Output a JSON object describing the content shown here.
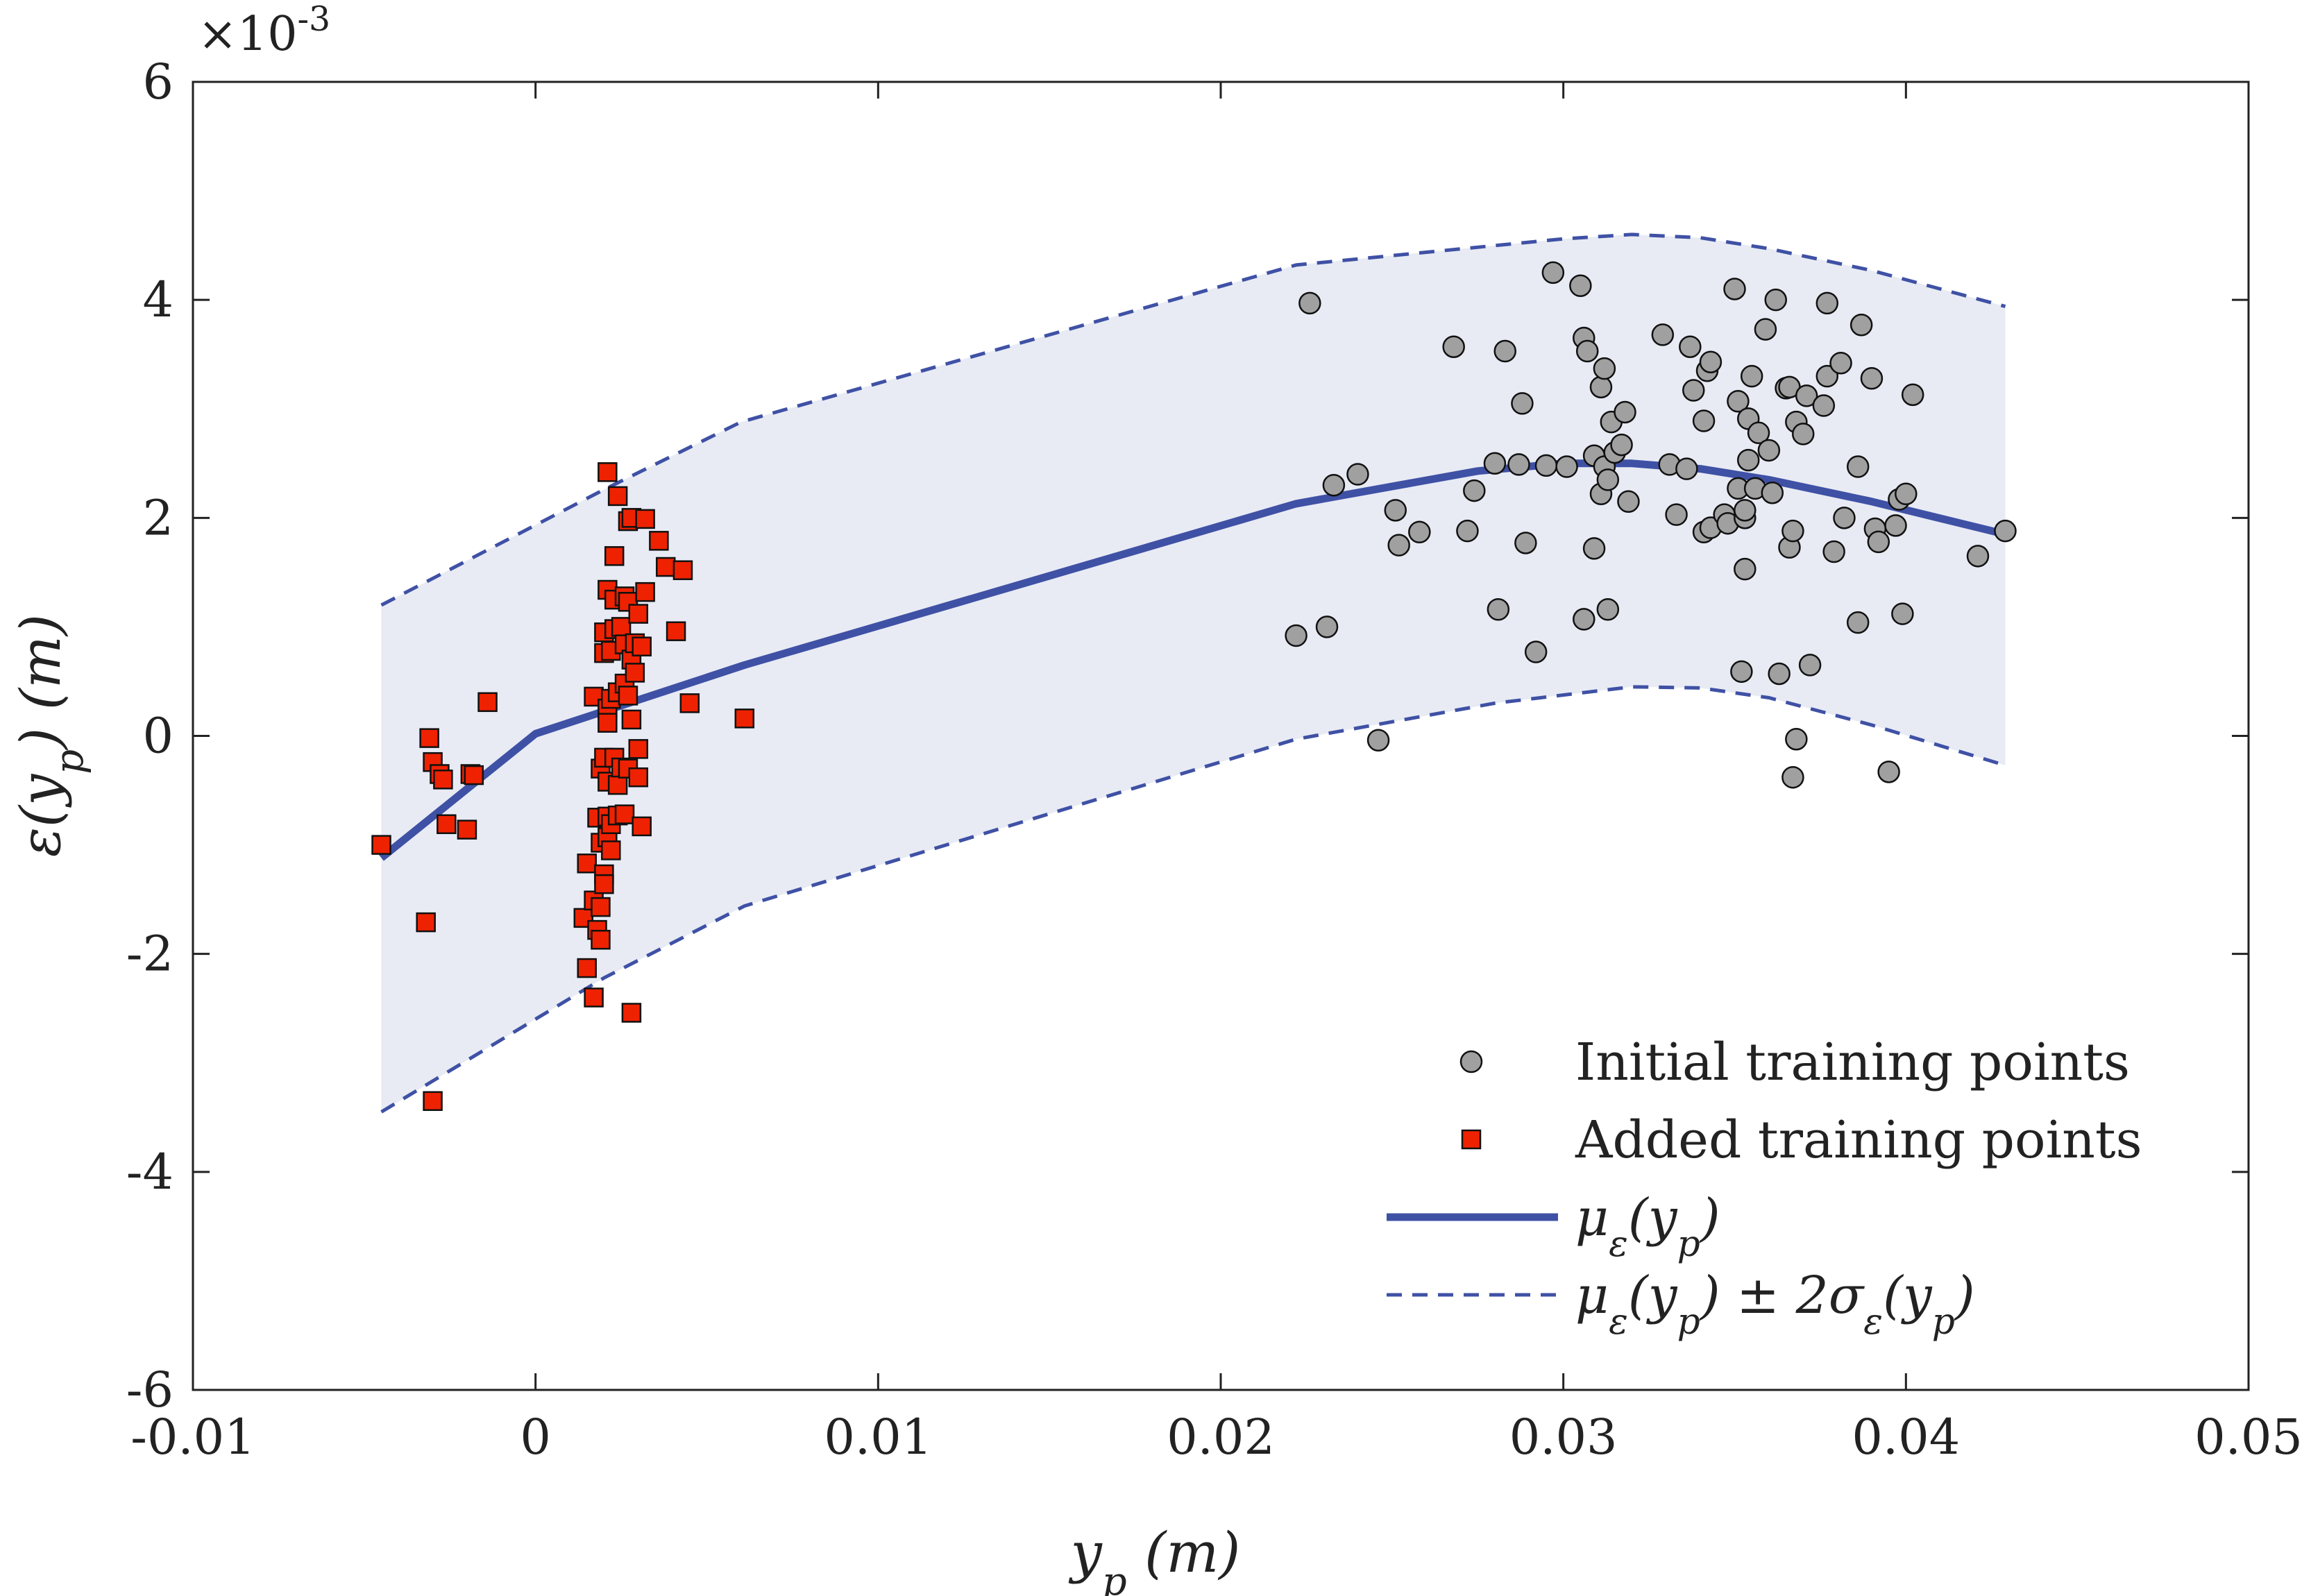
{
  "chart_data": {
    "type": "scatter",
    "title": "",
    "xlabel": "y_p (m)",
    "ylabel": "ε(y_p) (m)",
    "y_exponent_label": "×10^-3",
    "xlim": [
      -0.01,
      0.05
    ],
    "ylim": [
      -6,
      6
    ],
    "x_ticks": [
      -0.01,
      0,
      0.01,
      0.02,
      0.03,
      0.04,
      0.05
    ],
    "x_tick_labels": [
      "-0.01",
      "0",
      "0.01",
      "0.02",
      "0.03",
      "0.04",
      "0.05"
    ],
    "y_ticks": [
      -6,
      -4,
      -2,
      0,
      2,
      4,
      6
    ],
    "y_tick_labels": [
      "-6",
      "-4",
      "-2",
      "0",
      "2",
      "4",
      "6"
    ],
    "grid": false,
    "legend_position": "bottom-right",
    "colors": {
      "initial_points": "#a0a0a0",
      "added_points": "#ee2200",
      "mean_line": "#3f51a5",
      "band_fill": "#e8ebf4",
      "axis": "#222222"
    },
    "series": [
      {
        "name": "Initial training points",
        "kind": "scatter",
        "marker": "circle",
        "points": [
          [
            0.0222,
            0.92
          ],
          [
            0.0226,
            3.97
          ],
          [
            0.0231,
            1.0
          ],
          [
            0.0233,
            2.3
          ],
          [
            0.024,
            2.4
          ],
          [
            0.0246,
            -0.04
          ],
          [
            0.0251,
            2.07
          ],
          [
            0.0252,
            1.75
          ],
          [
            0.0258,
            1.87
          ],
          [
            0.0268,
            3.57
          ],
          [
            0.0272,
            1.88
          ],
          [
            0.0274,
            2.25
          ],
          [
            0.028,
            2.5
          ],
          [
            0.0281,
            1.16
          ],
          [
            0.0283,
            3.53
          ],
          [
            0.0287,
            2.49
          ],
          [
            0.0288,
            3.05
          ],
          [
            0.0289,
            1.77
          ],
          [
            0.0292,
            0.77
          ],
          [
            0.0295,
            2.48
          ],
          [
            0.0297,
            4.25
          ],
          [
            0.0301,
            2.47
          ],
          [
            0.0305,
            4.13
          ],
          [
            0.0306,
            3.65
          ],
          [
            0.0306,
            1.07
          ],
          [
            0.0307,
            3.53
          ],
          [
            0.0309,
            2.57
          ],
          [
            0.0309,
            1.72
          ],
          [
            0.0311,
            2.22
          ],
          [
            0.0311,
            3.2
          ],
          [
            0.0312,
            3.37
          ],
          [
            0.0312,
            2.47
          ],
          [
            0.0313,
            1.16
          ],
          [
            0.0313,
            2.35
          ],
          [
            0.0314,
            2.88
          ],
          [
            0.0315,
            2.6
          ],
          [
            0.0317,
            2.67
          ],
          [
            0.0318,
            2.97
          ],
          [
            0.0319,
            2.15
          ],
          [
            0.0329,
            3.68
          ],
          [
            0.0331,
            2.49
          ],
          [
            0.0333,
            2.03
          ],
          [
            0.0336,
            2.45
          ],
          [
            0.0337,
            3.57
          ],
          [
            0.0338,
            3.17
          ],
          [
            0.0341,
            2.89
          ],
          [
            0.0341,
            1.87
          ],
          [
            0.0342,
            3.35
          ],
          [
            0.0343,
            1.91
          ],
          [
            0.0343,
            3.43
          ],
          [
            0.0347,
            2.03
          ],
          [
            0.0348,
            1.95
          ],
          [
            0.035,
            4.1
          ],
          [
            0.0351,
            3.07
          ],
          [
            0.0351,
            2.27
          ],
          [
            0.0352,
            0.59
          ],
          [
            0.0353,
            2.0
          ],
          [
            0.0353,
            1.53
          ],
          [
            0.0353,
            2.07
          ],
          [
            0.0354,
            2.91
          ],
          [
            0.0354,
            2.53
          ],
          [
            0.0355,
            3.3
          ],
          [
            0.0356,
            2.27
          ],
          [
            0.0357,
            2.78
          ],
          [
            0.0359,
            3.73
          ],
          [
            0.036,
            2.62
          ],
          [
            0.0361,
            2.23
          ],
          [
            0.0362,
            4.0
          ],
          [
            0.0363,
            0.57
          ],
          [
            0.0365,
            3.19
          ],
          [
            0.0366,
            1.73
          ],
          [
            0.0366,
            3.2
          ],
          [
            0.0367,
            -0.38
          ],
          [
            0.0367,
            1.88
          ],
          [
            0.0368,
            -0.03
          ],
          [
            0.0368,
            2.88
          ],
          [
            0.037,
            2.77
          ],
          [
            0.0371,
            3.12
          ],
          [
            0.0372,
            0.65
          ],
          [
            0.0376,
            3.03
          ],
          [
            0.0377,
            3.97
          ],
          [
            0.0377,
            3.3
          ],
          [
            0.0379,
            1.69
          ],
          [
            0.0381,
            3.42
          ],
          [
            0.0382,
            2.0
          ],
          [
            0.0386,
            2.47
          ],
          [
            0.0386,
            1.04
          ],
          [
            0.0387,
            3.77
          ],
          [
            0.039,
            3.28
          ],
          [
            0.0391,
            1.9
          ],
          [
            0.0392,
            1.78
          ],
          [
            0.0395,
            -0.33
          ],
          [
            0.0397,
            1.93
          ],
          [
            0.0398,
            2.17
          ],
          [
            0.0399,
            1.12
          ],
          [
            0.04,
            2.22
          ],
          [
            0.0402,
            3.13
          ],
          [
            0.0421,
            1.65
          ],
          [
            0.0429,
            1.88
          ]
        ]
      },
      {
        "name": "Added training points",
        "kind": "scatter",
        "marker": "square",
        "points": [
          [
            -0.0045,
            -1.0
          ],
          [
            -0.0032,
            -1.71
          ],
          [
            -0.0031,
            -0.02
          ],
          [
            -0.003,
            -3.35
          ],
          [
            -0.003,
            -0.24
          ],
          [
            -0.0028,
            -0.35
          ],
          [
            -0.0027,
            -0.4
          ],
          [
            -0.0026,
            -0.81
          ],
          [
            -0.002,
            -0.86
          ],
          [
            -0.0019,
            -0.35
          ],
          [
            -0.0018,
            -0.36
          ],
          [
            -0.0014,
            0.31
          ],
          [
            0.0014,
            -1.67
          ],
          [
            0.0015,
            -1.17
          ],
          [
            0.0015,
            -2.13
          ],
          [
            0.0017,
            0.36
          ],
          [
            0.0017,
            -1.51
          ],
          [
            0.0017,
            -2.4
          ],
          [
            0.0018,
            -1.78
          ],
          [
            0.0018,
            -0.75
          ],
          [
            0.0019,
            -1.57
          ],
          [
            0.0019,
            -0.98
          ],
          [
            0.0019,
            -0.3
          ],
          [
            0.0019,
            -1.87
          ],
          [
            0.002,
            -0.2
          ],
          [
            0.002,
            -1.27
          ],
          [
            0.002,
            -1.36
          ],
          [
            0.002,
            0.76
          ],
          [
            0.002,
            0.95
          ],
          [
            0.0021,
            -0.74
          ],
          [
            0.0021,
            1.34
          ],
          [
            0.0021,
            0.25
          ],
          [
            0.0021,
            -0.93
          ],
          [
            0.0021,
            0.12
          ],
          [
            0.0021,
            -0.42
          ],
          [
            0.0021,
            2.42
          ],
          [
            0.0022,
            -0.81
          ],
          [
            0.0022,
            -1.05
          ],
          [
            0.0022,
            0.34
          ],
          [
            0.0022,
            0.78
          ],
          [
            0.0023,
            1.65
          ],
          [
            0.0023,
            -0.2
          ],
          [
            0.0023,
            1.25
          ],
          [
            0.0023,
            0.98
          ],
          [
            0.0024,
            -0.45
          ],
          [
            0.0024,
            2.2
          ],
          [
            0.0024,
            0.4
          ],
          [
            0.0024,
            -0.73
          ],
          [
            0.0025,
            1.0
          ],
          [
            0.0025,
            -0.29
          ],
          [
            0.0026,
            1.28
          ],
          [
            0.0026,
            0.84
          ],
          [
            0.0026,
            0.48
          ],
          [
            0.0026,
            -0.72
          ],
          [
            0.0027,
            1.23
          ],
          [
            0.0027,
            0.37
          ],
          [
            0.0027,
            -0.3
          ],
          [
            0.0027,
            1.97
          ],
          [
            0.0028,
            2.0
          ],
          [
            0.0028,
            0.7
          ],
          [
            0.0028,
            -2.54
          ],
          [
            0.0028,
            0.15
          ],
          [
            0.0029,
            0.58
          ],
          [
            0.0029,
            0.85
          ],
          [
            0.003,
            -0.12
          ],
          [
            0.003,
            1.12
          ],
          [
            0.003,
            -0.38
          ],
          [
            0.0031,
            -0.83
          ],
          [
            0.0031,
            0.82
          ],
          [
            0.0032,
            1.32
          ],
          [
            0.0032,
            1.99
          ],
          [
            0.0036,
            1.79
          ],
          [
            0.0038,
            1.55
          ],
          [
            0.0041,
            0.96
          ],
          [
            0.0043,
            1.52
          ],
          [
            0.0045,
            0.3
          ],
          [
            0.0061,
            0.16
          ]
        ]
      },
      {
        "name": "μ_ε(y_p)",
        "kind": "line",
        "style": "solid",
        "x": [
          -0.0045,
          0.0,
          0.0061,
          0.0222,
          0.0275,
          0.03,
          0.032,
          0.034,
          0.036,
          0.039,
          0.0429
        ],
        "values": [
          -1.12,
          0.02,
          0.65,
          2.13,
          2.43,
          2.5,
          2.5,
          2.45,
          2.35,
          2.15,
          1.85
        ]
      },
      {
        "name": "μ_ε(y_p) ± 2σ_ε(y_p) (upper)",
        "kind": "line",
        "style": "dashed",
        "x": [
          -0.0045,
          0.002,
          0.006,
          0.0222,
          0.03,
          0.032,
          0.034,
          0.036,
          0.039,
          0.0429
        ],
        "values": [
          1.2,
          2.26,
          2.88,
          4.32,
          4.56,
          4.6,
          4.57,
          4.47,
          4.27,
          3.94
        ]
      },
      {
        "name": "μ_ε(y_p) ± 2σ_ε(y_p) (lower)",
        "kind": "line",
        "style": "dashed",
        "x": [
          -0.0045,
          0.002,
          0.0061,
          0.0222,
          0.028,
          0.032,
          0.034,
          0.036,
          0.039,
          0.0429
        ],
        "values": [
          -3.45,
          -2.22,
          -1.56,
          -0.03,
          0.3,
          0.45,
          0.44,
          0.35,
          0.1,
          -0.27
        ]
      }
    ],
    "legend": [
      {
        "label": "Initial training points",
        "marker": "circle"
      },
      {
        "label": "Added training points",
        "marker": "square"
      },
      {
        "label": "μ_ε(y_p)",
        "marker": "solid-line"
      },
      {
        "label": "μ_ε(y_p) ± 2σ_ε(y_p)",
        "marker": "dashed-line"
      }
    ]
  }
}
